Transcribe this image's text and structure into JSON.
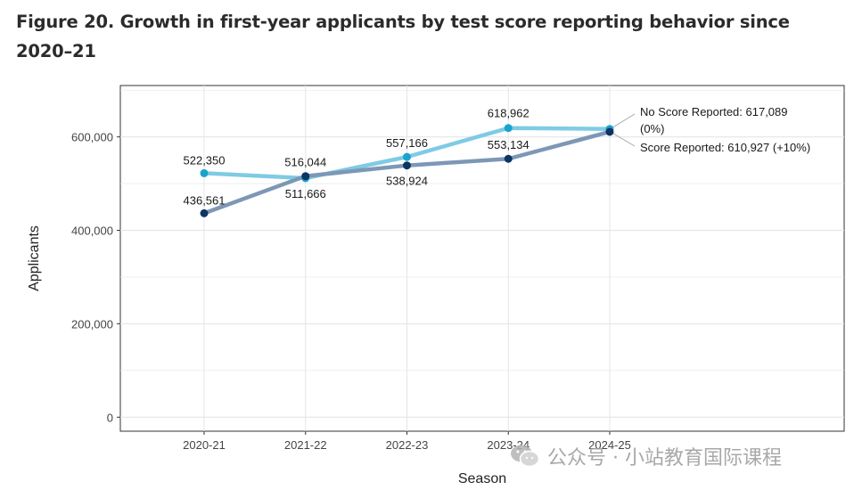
{
  "figure_title": "Figure 20. Growth in first-year applicants by test score reporting behavior since 2020–21",
  "watermark": "公众号 · 小站教育国际课程",
  "colors": {
    "no_score": "#7ecbe4",
    "no_score_point": "#1aa3cc",
    "score": "#7d97b6",
    "score_point": "#0d3463",
    "grid": "#e6e6e6",
    "panel_border": "#333333"
  },
  "chart_data": {
    "type": "line",
    "xlabel": "Season",
    "ylabel": "Applicants",
    "categories": [
      "2020-21",
      "2021-22",
      "2022-23",
      "2023-24",
      "2024-25"
    ],
    "ylim": [
      -30000,
      710000
    ],
    "y_ticks": [
      0,
      200000,
      400000,
      600000
    ],
    "y_tick_labels": [
      "0",
      "200,000",
      "400,000",
      "600,000"
    ],
    "grid": true,
    "series": [
      {
        "key": "no_score",
        "values": [
          522350,
          511666,
          557166,
          618962,
          617089
        ],
        "point_labels": [
          "522,350",
          "511,666",
          "557,166",
          "618,962",
          ""
        ],
        "end_label_line1": "No Score Reported: 617,089",
        "end_label_line2": "(0%)"
      },
      {
        "key": "score",
        "values": [
          436561,
          516044,
          538924,
          553134,
          610927
        ],
        "point_labels": [
          "436,561",
          "516,044",
          "538,924",
          "553,134",
          ""
        ],
        "end_label_line1": "Score Reported: 610,927 (+10%)",
        "end_label_line2": ""
      }
    ]
  }
}
